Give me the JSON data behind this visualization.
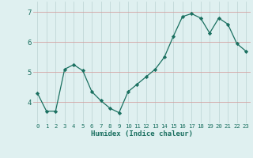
{
  "x": [
    0,
    1,
    2,
    3,
    4,
    5,
    6,
    7,
    8,
    9,
    10,
    11,
    12,
    13,
    14,
    15,
    16,
    17,
    18,
    19,
    20,
    21,
    22,
    23
  ],
  "y": [
    4.3,
    3.7,
    3.7,
    5.1,
    5.25,
    5.05,
    4.35,
    4.05,
    3.8,
    3.65,
    4.35,
    4.6,
    4.85,
    5.1,
    5.5,
    6.2,
    6.85,
    6.95,
    6.8,
    6.3,
    6.8,
    6.6,
    5.95,
    5.7
  ],
  "line_color": "#1a7060",
  "marker": "D",
  "marker_size": 2.2,
  "bg_color": "#dff0f0",
  "grid_color": "#c8dada",
  "grid_color2": "#d4a0a0",
  "xlabel": "Humidex (Indice chaleur)",
  "xlabel_color": "#1a7060",
  "ytick_labels": [
    "4",
    "5",
    "6",
    "7"
  ],
  "ytick_vals": [
    4,
    5,
    6,
    7
  ],
  "ylim": [
    3.3,
    7.35
  ],
  "xlim": [
    -0.5,
    23.5
  ]
}
